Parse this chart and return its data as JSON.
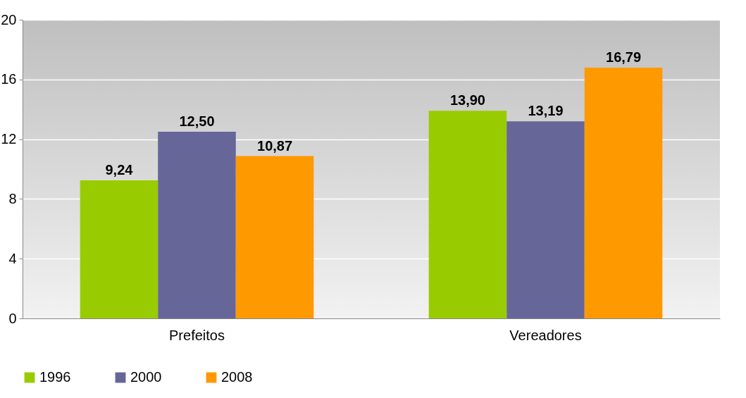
{
  "chart_data": {
    "type": "bar",
    "categories": [
      "Prefeitos",
      "Vereadores"
    ],
    "series": [
      {
        "name": "1996",
        "color": "#99cc00",
        "values": [
          9.24,
          13.9
        ],
        "value_labels": [
          "9,24",
          "13,90"
        ]
      },
      {
        "name": "2000",
        "color": "#666699",
        "values": [
          12.5,
          13.19
        ],
        "value_labels": [
          "12,50",
          "13,19"
        ]
      },
      {
        "name": "2008",
        "color": "#ff9900",
        "values": [
          10.87,
          16.79
        ],
        "value_labels": [
          "10,87",
          "16,79"
        ]
      }
    ],
    "ylim": [
      0,
      20
    ],
    "yticks": [
      0,
      4,
      8,
      12,
      16,
      20
    ],
    "grid": "y",
    "legend": "bottom"
  }
}
